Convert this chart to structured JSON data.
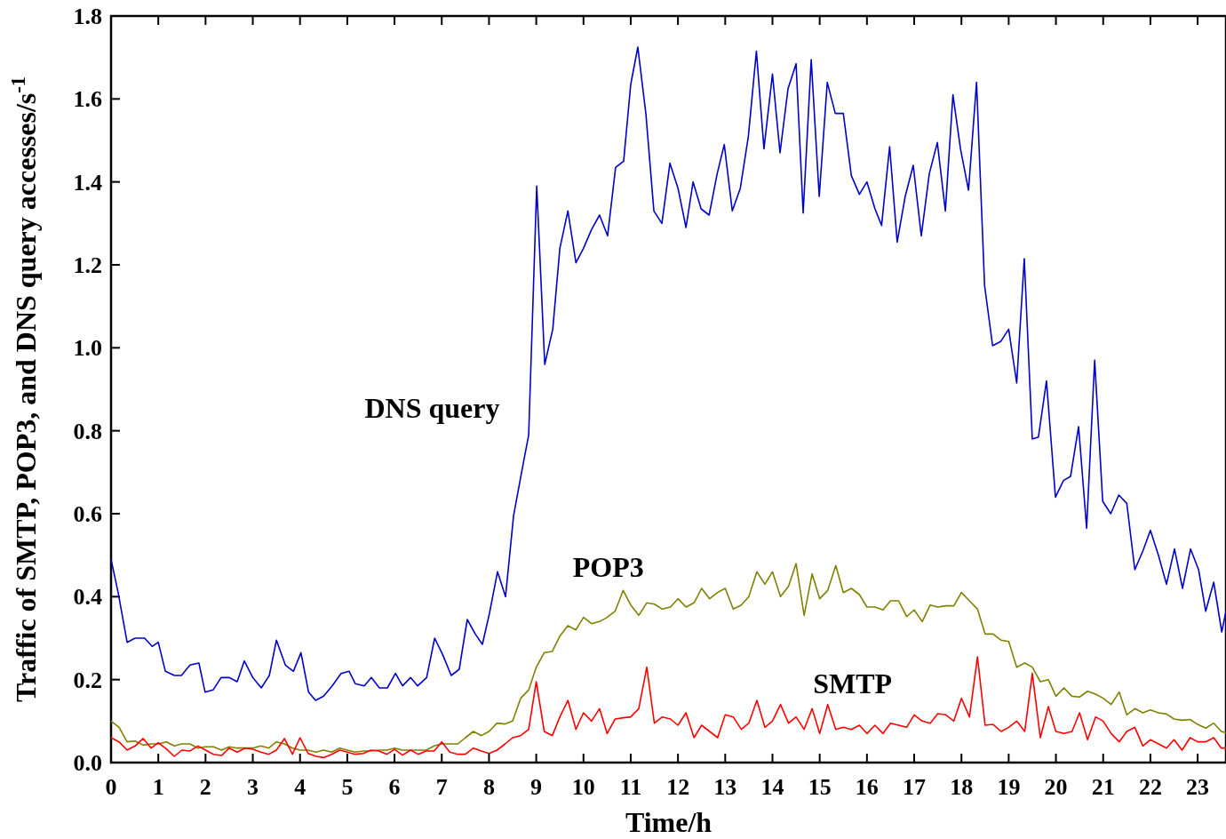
{
  "chart_data": {
    "type": "line",
    "xlabel": "Time/h",
    "ylabel": "Traffic of SMTP, POP3, and DNS query accesses/s$^{-1}$",
    "xlim": [
      0,
      23.6
    ],
    "xticks": [
      0,
      1,
      2,
      3,
      4,
      5,
      6,
      7,
      8,
      9,
      10,
      11,
      12,
      13,
      14,
      15,
      16,
      17,
      18,
      19,
      20,
      21,
      22,
      23
    ],
    "ylim": [
      0,
      1.8
    ],
    "yticks": [
      {
        "value": 0,
        "label": "0.0"
      },
      {
        "value": 0.2,
        "label": "0.2"
      },
      {
        "value": 0.4,
        "label": "0.4"
      },
      {
        "value": 0.6,
        "label": "0.6"
      },
      {
        "value": 0.8,
        "label": "0.8"
      },
      {
        "value": 1,
        "label": "1.0"
      },
      {
        "value": 1.2,
        "label": "1.2"
      },
      {
        "value": 1.4,
        "label": "1.4"
      },
      {
        "value": 1.6,
        "label": "1.6"
      },
      {
        "value": 1.8,
        "label": "1.8"
      }
    ],
    "grid": false,
    "line_style": "solid",
    "series": [
      {
        "name": "DNS query",
        "color": "#0000cc",
        "x": [
          0,
          0.15,
          0.34,
          0.51,
          0.71,
          0.87,
          1,
          1.15,
          1.34,
          1.49,
          1.67,
          1.86,
          1.99,
          2.16,
          2.33,
          2.5,
          2.67,
          2.82,
          3,
          3.18,
          3.35,
          3.5,
          3.69,
          3.86,
          4.02,
          4.18,
          4.33,
          4.5,
          4.68,
          4.87,
          5.04,
          5.17,
          5.36,
          5.51,
          5.68,
          5.85,
          6.02,
          6.17,
          6.34,
          6.49,
          6.68,
          6.85,
          7.02,
          7.2,
          7.37,
          7.54,
          7.71,
          7.86,
          8.01,
          8.18,
          8.35,
          8.52,
          8.69,
          8.84,
          9.01,
          9.18,
          9.35,
          9.5,
          9.67,
          9.84,
          10,
          10.17,
          10.34,
          10.51,
          10.68,
          10.85,
          11,
          11.15,
          11.32,
          11.49,
          11.66,
          11.83,
          12,
          12.17,
          12.32,
          12.49,
          12.66,
          12.83,
          12.98,
          13.15,
          13.32,
          13.49,
          13.66,
          13.82,
          14,
          14.16,
          14.33,
          14.5,
          14.65,
          14.82,
          14.99,
          15.16,
          15.33,
          15.5,
          15.67,
          15.84,
          16,
          16.17,
          16.31,
          16.48,
          16.64,
          16.81,
          16.98,
          17.15,
          17.32,
          17.49,
          17.66,
          17.82,
          17.98,
          18.15,
          18.32,
          18.49,
          18.66,
          18.83,
          19,
          19.17,
          19.33,
          19.5,
          19.63,
          19.8,
          19.99,
          20.16,
          20.31,
          20.48,
          20.65,
          20.82,
          20.99,
          21.16,
          21.33,
          21.5,
          21.67,
          21.84,
          22,
          22.17,
          22.34,
          22.51,
          22.68,
          22.85,
          23.02,
          23.17,
          23.34,
          23.51,
          23.6
        ],
        "values": [
          0.49,
          0.41,
          0.29,
          0.3,
          0.3,
          0.28,
          0.29,
          0.22,
          0.21,
          0.21,
          0.235,
          0.24,
          0.17,
          0.175,
          0.205,
          0.205,
          0.195,
          0.245,
          0.205,
          0.18,
          0.21,
          0.295,
          0.235,
          0.22,
          0.265,
          0.17,
          0.15,
          0.16,
          0.185,
          0.215,
          0.22,
          0.19,
          0.185,
          0.205,
          0.18,
          0.18,
          0.215,
          0.185,
          0.205,
          0.185,
          0.205,
          0.3,
          0.26,
          0.21,
          0.225,
          0.345,
          0.31,
          0.285,
          0.36,
          0.46,
          0.4,
          0.595,
          0.7,
          0.79,
          1.39,
          0.96,
          1.045,
          1.24,
          1.33,
          1.205,
          1.24,
          1.285,
          1.32,
          1.27,
          1.435,
          1.45,
          1.635,
          1.725,
          1.565,
          1.33,
          1.3,
          1.445,
          1.385,
          1.29,
          1.4,
          1.335,
          1.32,
          1.42,
          1.49,
          1.33,
          1.385,
          1.51,
          1.715,
          1.48,
          1.66,
          1.47,
          1.625,
          1.685,
          1.325,
          1.695,
          1.365,
          1.64,
          1.565,
          1.565,
          1.415,
          1.37,
          1.4,
          1.335,
          1.295,
          1.485,
          1.255,
          1.365,
          1.44,
          1.27,
          1.42,
          1.495,
          1.33,
          1.61,
          1.48,
          1.38,
          1.64,
          1.15,
          1.005,
          1.015,
          1.045,
          0.915,
          1.215,
          0.78,
          0.785,
          0.92,
          0.64,
          0.68,
          0.69,
          0.81,
          0.565,
          0.97,
          0.63,
          0.6,
          0.645,
          0.625,
          0.465,
          0.51,
          0.56,
          0.5,
          0.43,
          0.515,
          0.42,
          0.515,
          0.465,
          0.365,
          0.435,
          0.315,
          0.365
        ]
      },
      {
        "name": "POP3",
        "color": "#808000",
        "x": [
          0,
          0.17,
          0.34,
          0.51,
          0.68,
          0.85,
          1,
          1.17,
          1.34,
          1.5,
          1.67,
          1.84,
          2,
          2.17,
          2.34,
          2.5,
          2.67,
          2.84,
          3,
          3.17,
          3.34,
          3.5,
          3.67,
          3.84,
          4,
          4.17,
          4.34,
          4.5,
          4.67,
          4.84,
          5,
          5.17,
          5.34,
          5.5,
          5.67,
          5.84,
          6,
          6.17,
          6.34,
          6.5,
          6.67,
          6.84,
          7,
          7.17,
          7.34,
          7.5,
          7.67,
          7.84,
          8,
          8.17,
          8.34,
          8.5,
          8.67,
          8.84,
          9,
          9.17,
          9.34,
          9.5,
          9.67,
          9.84,
          10,
          10.17,
          10.34,
          10.5,
          10.67,
          10.84,
          11,
          11.17,
          11.34,
          11.5,
          11.67,
          11.84,
          12,
          12.17,
          12.34,
          12.5,
          12.67,
          12.84,
          13,
          13.17,
          13.34,
          13.5,
          13.67,
          13.84,
          14,
          14.17,
          14.34,
          14.5,
          14.67,
          14.84,
          15,
          15.17,
          15.34,
          15.5,
          15.67,
          15.84,
          16,
          16.17,
          16.34,
          16.5,
          16.67,
          16.84,
          17,
          17.17,
          17.34,
          17.5,
          17.67,
          17.84,
          18,
          18.17,
          18.34,
          18.5,
          18.67,
          18.84,
          19,
          19.17,
          19.34,
          19.5,
          19.67,
          19.84,
          20,
          20.17,
          20.34,
          20.5,
          20.67,
          20.84,
          21,
          21.17,
          21.34,
          21.5,
          21.67,
          21.84,
          22,
          22.17,
          22.34,
          22.5,
          22.67,
          22.84,
          23,
          23.17,
          23.34,
          23.5,
          23.6
        ],
        "values": [
          0.1,
          0.085,
          0.05,
          0.052,
          0.042,
          0.045,
          0.045,
          0.05,
          0.04,
          0.045,
          0.045,
          0.035,
          0.038,
          0.038,
          0.03,
          0.038,
          0.035,
          0.035,
          0.035,
          0.04,
          0.035,
          0.05,
          0.045,
          0.035,
          0.03,
          0.03,
          0.025,
          0.03,
          0.025,
          0.035,
          0.03,
          0.025,
          0.028,
          0.028,
          0.03,
          0.03,
          0.035,
          0.03,
          0.03,
          0.03,
          0.03,
          0.04,
          0.045,
          0.045,
          0.045,
          0.06,
          0.075,
          0.065,
          0.075,
          0.095,
          0.093,
          0.1,
          0.155,
          0.175,
          0.23,
          0.265,
          0.268,
          0.305,
          0.33,
          0.32,
          0.35,
          0.335,
          0.34,
          0.35,
          0.365,
          0.415,
          0.38,
          0.355,
          0.385,
          0.382,
          0.37,
          0.375,
          0.395,
          0.375,
          0.385,
          0.42,
          0.395,
          0.41,
          0.42,
          0.37,
          0.38,
          0.4,
          0.46,
          0.43,
          0.46,
          0.4,
          0.425,
          0.48,
          0.355,
          0.455,
          0.395,
          0.415,
          0.475,
          0.41,
          0.42,
          0.405,
          0.375,
          0.375,
          0.368,
          0.39,
          0.39,
          0.352,
          0.368,
          0.34,
          0.38,
          0.375,
          0.378,
          0.378,
          0.41,
          0.39,
          0.37,
          0.31,
          0.31,
          0.295,
          0.292,
          0.23,
          0.24,
          0.23,
          0.195,
          0.2,
          0.16,
          0.18,
          0.16,
          0.158,
          0.172,
          0.165,
          0.155,
          0.14,
          0.17,
          0.115,
          0.13,
          0.12,
          0.127,
          0.12,
          0.117,
          0.105,
          0.102,
          0.104,
          0.092,
          0.083,
          0.095,
          0.075,
          0.072
        ]
      },
      {
        "name": "SMTP",
        "color": "#ff0000",
        "x": [
          0,
          0.17,
          0.34,
          0.51,
          0.68,
          0.85,
          1,
          1.17,
          1.34,
          1.5,
          1.67,
          1.84,
          2,
          2.17,
          2.34,
          2.5,
          2.67,
          2.84,
          3,
          3.17,
          3.34,
          3.5,
          3.67,
          3.84,
          4,
          4.17,
          4.34,
          4.5,
          4.67,
          4.84,
          5,
          5.17,
          5.34,
          5.5,
          5.67,
          5.84,
          6,
          6.17,
          6.34,
          6.5,
          6.67,
          6.84,
          7,
          7.17,
          7.34,
          7.5,
          7.67,
          7.84,
          8,
          8.17,
          8.34,
          8.5,
          8.67,
          8.84,
          9,
          9.17,
          9.34,
          9.5,
          9.67,
          9.84,
          10,
          10.17,
          10.34,
          10.5,
          10.67,
          10.84,
          11,
          11.17,
          11.34,
          11.5,
          11.67,
          11.84,
          12,
          12.17,
          12.34,
          12.5,
          12.67,
          12.84,
          13,
          13.17,
          13.34,
          13.5,
          13.67,
          13.84,
          14,
          14.17,
          14.34,
          14.5,
          14.67,
          14.84,
          15,
          15.17,
          15.34,
          15.5,
          15.67,
          15.84,
          16,
          16.17,
          16.34,
          16.5,
          16.67,
          16.84,
          17,
          17.17,
          17.34,
          17.5,
          17.67,
          17.84,
          18,
          18.17,
          18.34,
          18.5,
          18.67,
          18.84,
          19,
          19.17,
          19.34,
          19.5,
          19.67,
          19.84,
          20,
          20.17,
          20.34,
          20.5,
          20.67,
          20.84,
          21,
          21.17,
          21.34,
          21.5,
          21.67,
          21.84,
          22,
          22.17,
          22.34,
          22.5,
          22.67,
          22.84,
          23,
          23.17,
          23.34,
          23.5,
          23.6
        ],
        "values": [
          0.06,
          0.05,
          0.03,
          0.04,
          0.058,
          0.035,
          0.048,
          0.033,
          0.015,
          0.03,
          0.028,
          0.04,
          0.03,
          0.02,
          0.017,
          0.035,
          0.025,
          0.035,
          0.032,
          0.025,
          0.02,
          0.03,
          0.058,
          0.02,
          0.06,
          0.022,
          0.015,
          0.012,
          0.02,
          0.03,
          0.025,
          0.02,
          0.022,
          0.03,
          0.028,
          0.02,
          0.032,
          0.018,
          0.03,
          0.02,
          0.028,
          0.028,
          0.05,
          0.025,
          0.02,
          0.02,
          0.035,
          0.028,
          0.022,
          0.03,
          0.045,
          0.06,
          0.065,
          0.08,
          0.195,
          0.075,
          0.065,
          0.11,
          0.15,
          0.08,
          0.12,
          0.1,
          0.13,
          0.07,
          0.105,
          0.108,
          0.11,
          0.13,
          0.23,
          0.095,
          0.11,
          0.105,
          0.09,
          0.12,
          0.06,
          0.09,
          0.075,
          0.06,
          0.115,
          0.11,
          0.08,
          0.095,
          0.15,
          0.085,
          0.1,
          0.14,
          0.095,
          0.11,
          0.08,
          0.13,
          0.07,
          0.14,
          0.08,
          0.085,
          0.08,
          0.09,
          0.07,
          0.09,
          0.07,
          0.095,
          0.09,
          0.085,
          0.115,
          0.1,
          0.095,
          0.118,
          0.115,
          0.1,
          0.155,
          0.11,
          0.255,
          0.09,
          0.092,
          0.075,
          0.085,
          0.1,
          0.075,
          0.215,
          0.06,
          0.135,
          0.075,
          0.07,
          0.075,
          0.12,
          0.055,
          0.11,
          0.1,
          0.07,
          0.05,
          0.075,
          0.085,
          0.04,
          0.055,
          0.045,
          0.035,
          0.055,
          0.03,
          0.06,
          0.05,
          0.05,
          0.06,
          0.035,
          0.035
        ]
      }
    ]
  }
}
